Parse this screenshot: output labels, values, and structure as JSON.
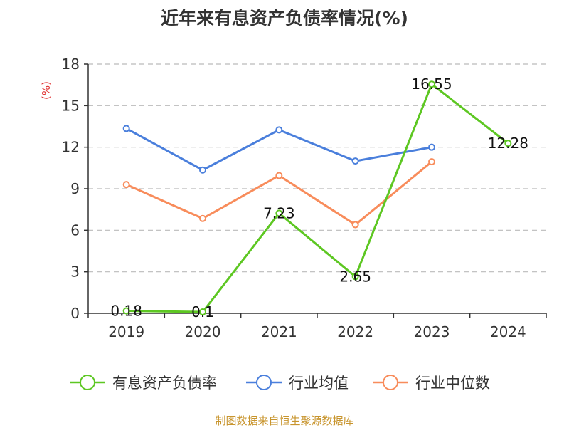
{
  "chart_data": {
    "type": "line",
    "title": "近年来有息资产负债率情况(%)",
    "ylabel": "(%)",
    "categories": [
      "2019",
      "2020",
      "2021",
      "2022",
      "2023",
      "2024"
    ],
    "ylim": [
      0,
      18
    ],
    "yticks": [
      0,
      3,
      6,
      9,
      12,
      15,
      18
    ],
    "grid": true,
    "legend_position": "bottom",
    "series": [
      {
        "name": "有息资产负债率",
        "color": "#5dc722",
        "values": [
          0.18,
          0.1,
          7.23,
          2.65,
          16.55,
          12.28
        ],
        "labels": [
          "0.18",
          "0.1",
          "7.23",
          "2.65",
          "16.55",
          "12.28"
        ]
      },
      {
        "name": "行业均值",
        "color": "#4a7fdc",
        "values": [
          13.35,
          10.35,
          13.25,
          11.0,
          12.0,
          null
        ]
      },
      {
        "name": "行业中位数",
        "color": "#f88c5b",
        "values": [
          9.3,
          6.85,
          9.95,
          6.4,
          10.95,
          null
        ]
      }
    ]
  },
  "source": "制图数据来自恒生聚源数据库",
  "colors": {
    "axis": "#333333",
    "grid": "#bbbbbb",
    "unit": "#e03030",
    "source": "#c8952e"
  }
}
